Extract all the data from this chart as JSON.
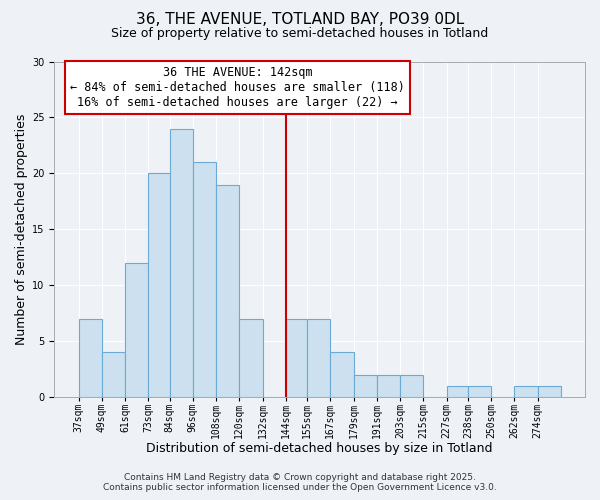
{
  "title_line1": "36, THE AVENUE, TOTLAND BAY, PO39 0DL",
  "title_line2": "Size of property relative to semi-detached houses in Totland",
  "xlabel": "Distribution of semi-detached houses by size in Totland",
  "ylabel": "Number of semi-detached properties",
  "bin_labels": [
    "37sqm",
    "49sqm",
    "61sqm",
    "73sqm",
    "84sqm",
    "96sqm",
    "108sqm",
    "120sqm",
    "132sqm",
    "144sqm",
    "155sqm",
    "167sqm",
    "179sqm",
    "191sqm",
    "203sqm",
    "215sqm",
    "227sqm",
    "238sqm",
    "250sqm",
    "262sqm",
    "274sqm"
  ],
  "bin_edges": [
    37,
    49,
    61,
    73,
    84,
    96,
    108,
    120,
    132,
    144,
    155,
    167,
    179,
    191,
    203,
    215,
    227,
    238,
    250,
    262,
    274
  ],
  "counts": [
    7,
    4,
    12,
    20,
    24,
    21,
    19,
    7,
    0,
    7,
    7,
    4,
    2,
    2,
    2,
    0,
    1,
    1,
    0,
    1,
    1
  ],
  "bar_color": "#cce0f0",
  "bar_edge_color": "#6aaad4",
  "vline_x": 144,
  "vline_color": "#cc0000",
  "annotation_title": "36 THE AVENUE: 142sqm",
  "annotation_line2": "← 84% of semi-detached houses are smaller (118)",
  "annotation_line3": "16% of semi-detached houses are larger (22) →",
  "annotation_box_facecolor": "#ffffff",
  "annotation_box_edgecolor": "#cc0000",
  "ylim": [
    0,
    30
  ],
  "yticks": [
    0,
    5,
    10,
    15,
    20,
    25,
    30
  ],
  "background_color": "#eef2f7",
  "grid_color": "#ffffff",
  "footer_line1": "Contains HM Land Registry data © Crown copyright and database right 2025.",
  "footer_line2": "Contains public sector information licensed under the Open Government Licence v3.0.",
  "title_fontsize": 11,
  "subtitle_fontsize": 9,
  "axis_label_fontsize": 9,
  "tick_fontsize": 7,
  "annotation_fontsize": 8.5,
  "footer_fontsize": 6.5
}
